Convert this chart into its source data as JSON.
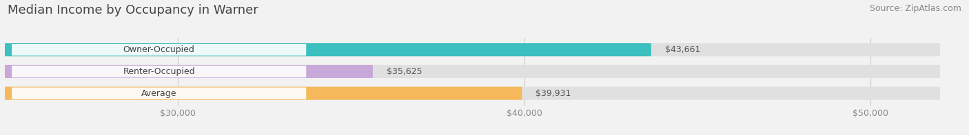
{
  "title": "Median Income by Occupancy in Warner",
  "source": "Source: ZipAtlas.com",
  "categories": [
    "Owner-Occupied",
    "Renter-Occupied",
    "Average"
  ],
  "values": [
    43661,
    35625,
    39931
  ],
  "bar_colors": [
    "#3bbfbf",
    "#c8a8d8",
    "#f5b85a"
  ],
  "bar_labels": [
    "$43,661",
    "$35,625",
    "$39,931"
  ],
  "xlim": [
    25000,
    52000
  ],
  "xticks": [
    30000,
    40000,
    50000
  ],
  "xtick_labels": [
    "$30,000",
    "$40,000",
    "$50,000"
  ],
  "background_color": "#f2f2f2",
  "bar_background_color": "#e0e0e0",
  "title_fontsize": 13,
  "source_fontsize": 9,
  "label_fontsize": 9,
  "tick_fontsize": 9
}
